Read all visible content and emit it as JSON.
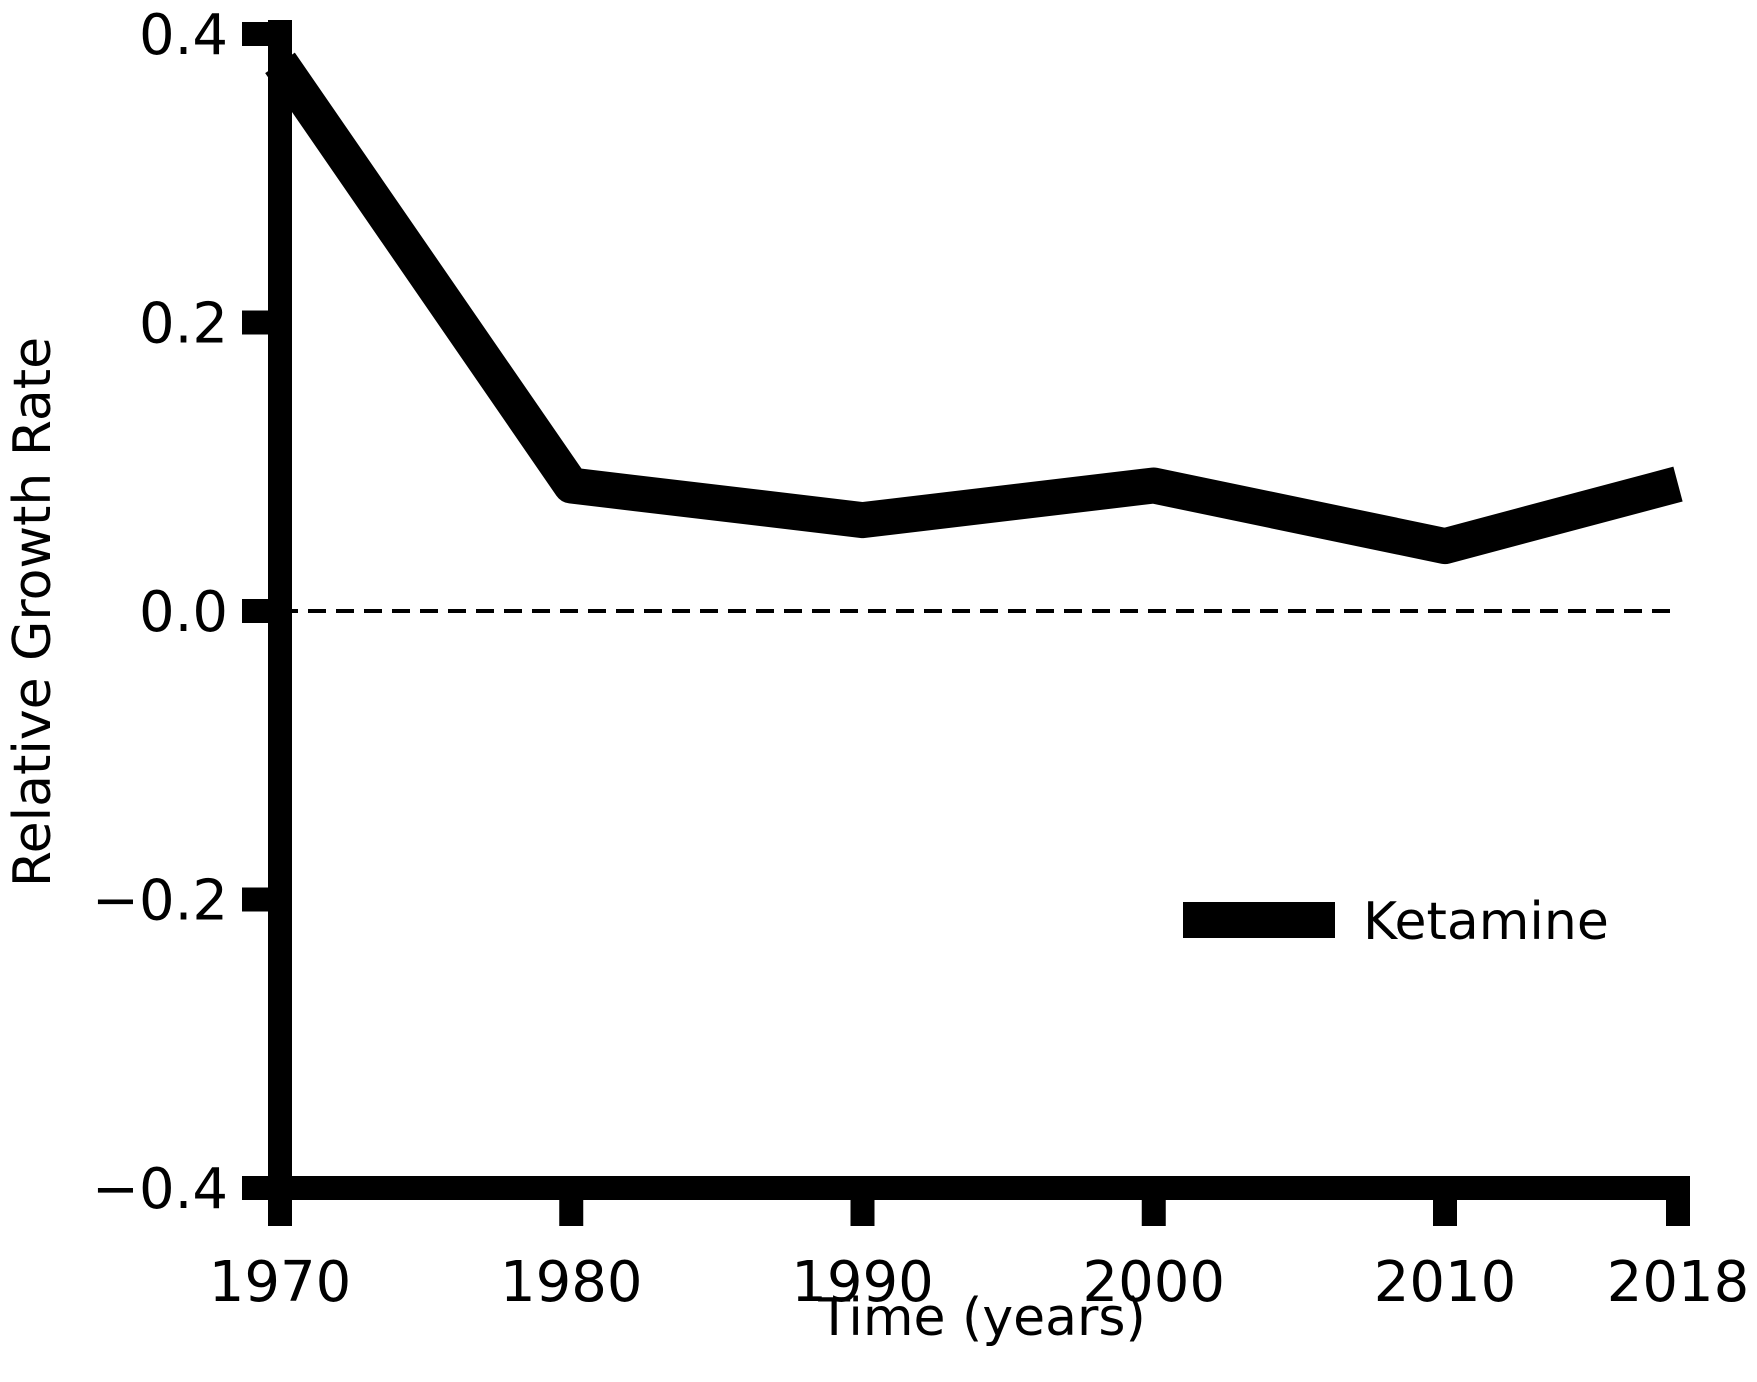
{
  "chart_data": {
    "type": "line",
    "title": "",
    "xlabel": "Time (years)",
    "ylabel": "Relative Growth Rate",
    "x": [
      1970,
      1980,
      1990,
      2000,
      2010,
      2018
    ],
    "series": [
      {
        "name": "Ketamine",
        "values": [
          0.38,
          0.087,
          0.063,
          0.087,
          0.045,
          0.088
        ],
        "color": "#000000"
      }
    ],
    "xlim": [
      1970,
      2018
    ],
    "ylim": [
      -0.4,
      0.4
    ],
    "xticks": [
      1970,
      1980,
      1990,
      2000,
      2010,
      2018
    ],
    "xtick_labels": [
      "1970",
      "1980",
      "1990",
      "2000",
      "2010",
      "2018"
    ],
    "yticks": [
      -0.4,
      -0.2,
      0.0,
      0.2,
      0.4
    ],
    "ytick_labels": [
      "−0.4",
      "−0.2",
      "0.0",
      "0.2",
      "0.4"
    ],
    "reference_line": {
      "y": 0.0,
      "style": "dashed",
      "color": "#000000"
    },
    "grid": false,
    "legend": {
      "position": "lower-right",
      "entries": [
        "Ketamine"
      ]
    }
  }
}
